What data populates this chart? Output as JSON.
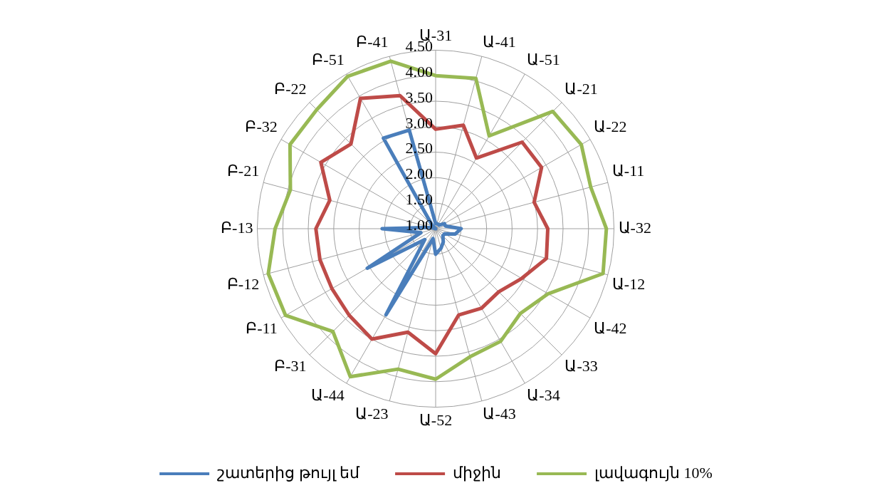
{
  "chart_data": {
    "type": "radar",
    "categories": [
      "Ա-31",
      "Ա-41",
      "Ա-51",
      "Ա-21",
      "Ա-22",
      "Ա-11",
      "Ա-32",
      "Ա-12",
      "Ա-42",
      "Ա-33",
      "Ա-34",
      "Ա-43",
      "Ա-52",
      "Ա-23",
      "Ա-44",
      "Բ-31",
      "Բ-11",
      "Բ-12",
      "Բ-13",
      "Բ-21",
      "Բ-32",
      "Բ-22",
      "Բ-51",
      "Բ-41"
    ],
    "series": [
      {
        "name": "շատերից թույլ եմ",
        "color": "#4a7ebb",
        "values": [
          1.1,
          1.1,
          1.1,
          1.1,
          1.2,
          1.2,
          1.5,
          1.4,
          1.2,
          1.2,
          1.3,
          1.4,
          1.5,
          1.2,
          2.95,
          1.3,
          2.55,
          1.3,
          2.05,
          1.1,
          1.0,
          1.1,
          3.05,
          3.0
        ]
      },
      {
        "name": "միջին",
        "color": "#be4b48",
        "values": [
          2.95,
          3.1,
          2.6,
          3.4,
          3.4,
          3.0,
          3.2,
          3.25,
          2.95,
          2.75,
          2.8,
          2.75,
          3.45,
          3.1,
          3.5,
          3.4,
          3.35,
          3.35,
          3.35,
          3.15,
          3.6,
          3.35,
          3.95,
          3.7
        ]
      },
      {
        "name": "լավագույն 10%",
        "color": "#98b954",
        "values": [
          4.0,
          4.05,
          3.1,
          4.25,
          4.3,
          4.15,
          4.35,
          4.4,
          3.55,
          3.35,
          3.55,
          3.6,
          3.95,
          3.85,
          4.35,
          3.85,
          4.4,
          4.4,
          4.15,
          3.95,
          4.3,
          4.3,
          4.45,
          4.4
        ]
      }
    ],
    "ylim": [
      1,
      4.5
    ],
    "yticks": [
      {
        "value": 1,
        "label": "1.00"
      },
      {
        "value": 1.5,
        "label": "1.50"
      },
      {
        "value": 2,
        "label": "2.00"
      },
      {
        "value": 2.5,
        "label": "2.50"
      },
      {
        "value": 3,
        "label": "3.00"
      },
      {
        "value": 3.5,
        "label": "3.50"
      },
      {
        "value": 4,
        "label": "4.00"
      },
      {
        "value": 4.5,
        "label": "4.50"
      }
    ],
    "grid": true,
    "legend": "bottom",
    "marker": "none",
    "line_style": "solid"
  }
}
